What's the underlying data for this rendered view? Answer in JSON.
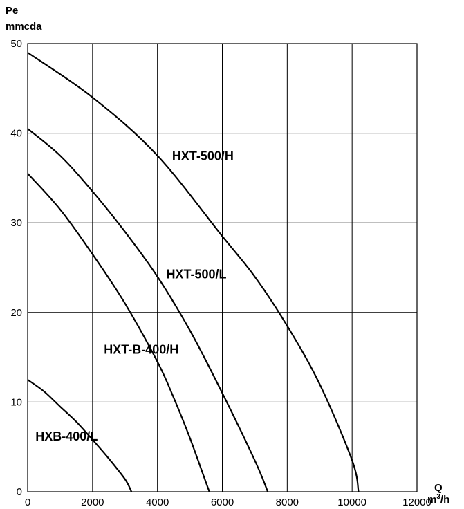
{
  "chart_data": {
    "type": "line",
    "ylabel_line1": "Pe",
    "ylabel_line2": "mmcda",
    "xlabel_line1": "Q",
    "xlabel_unit": "m",
    "xlabel_unit_sup": "3",
    "xlabel_unit_tail": "/h",
    "xlim": [
      0,
      12000
    ],
    "ylim": [
      0,
      50
    ],
    "xticks": [
      "0",
      "2000",
      "4000",
      "6000",
      "8000",
      "10000",
      "12000"
    ],
    "yticks": [
      "0",
      "10",
      "20",
      "30",
      "40",
      "50"
    ],
    "grid": true,
    "series": [
      {
        "name": "HXT-500/H",
        "x": [
          0,
          2000,
          4000,
          6000,
          7000,
          8000,
          9000,
          10000,
          10200
        ],
        "y": [
          49,
          44,
          37.5,
          28.5,
          24,
          18.5,
          12,
          3.5,
          0
        ]
      },
      {
        "name": "HXT-500/L",
        "x": [
          0,
          1000,
          2000,
          3000,
          4000,
          5000,
          6000,
          7000,
          7400
        ],
        "y": [
          40.5,
          37.5,
          33.5,
          29,
          24,
          18,
          11,
          3.5,
          0
        ]
      },
      {
        "name": "HXT-B-400/H",
        "x": [
          0,
          1000,
          2000,
          3000,
          4000,
          4500,
          5000,
          5500,
          5600
        ],
        "y": [
          35.5,
          31.5,
          26.5,
          21,
          14.5,
          10.5,
          6,
          1,
          0
        ]
      },
      {
        "name": "HXB-400/L",
        "x": [
          0,
          500,
          1000,
          1500,
          2000,
          2500,
          3000,
          3200
        ],
        "y": [
          12.5,
          11.2,
          9.5,
          7.8,
          5.8,
          3.7,
          1.4,
          0
        ]
      }
    ]
  }
}
